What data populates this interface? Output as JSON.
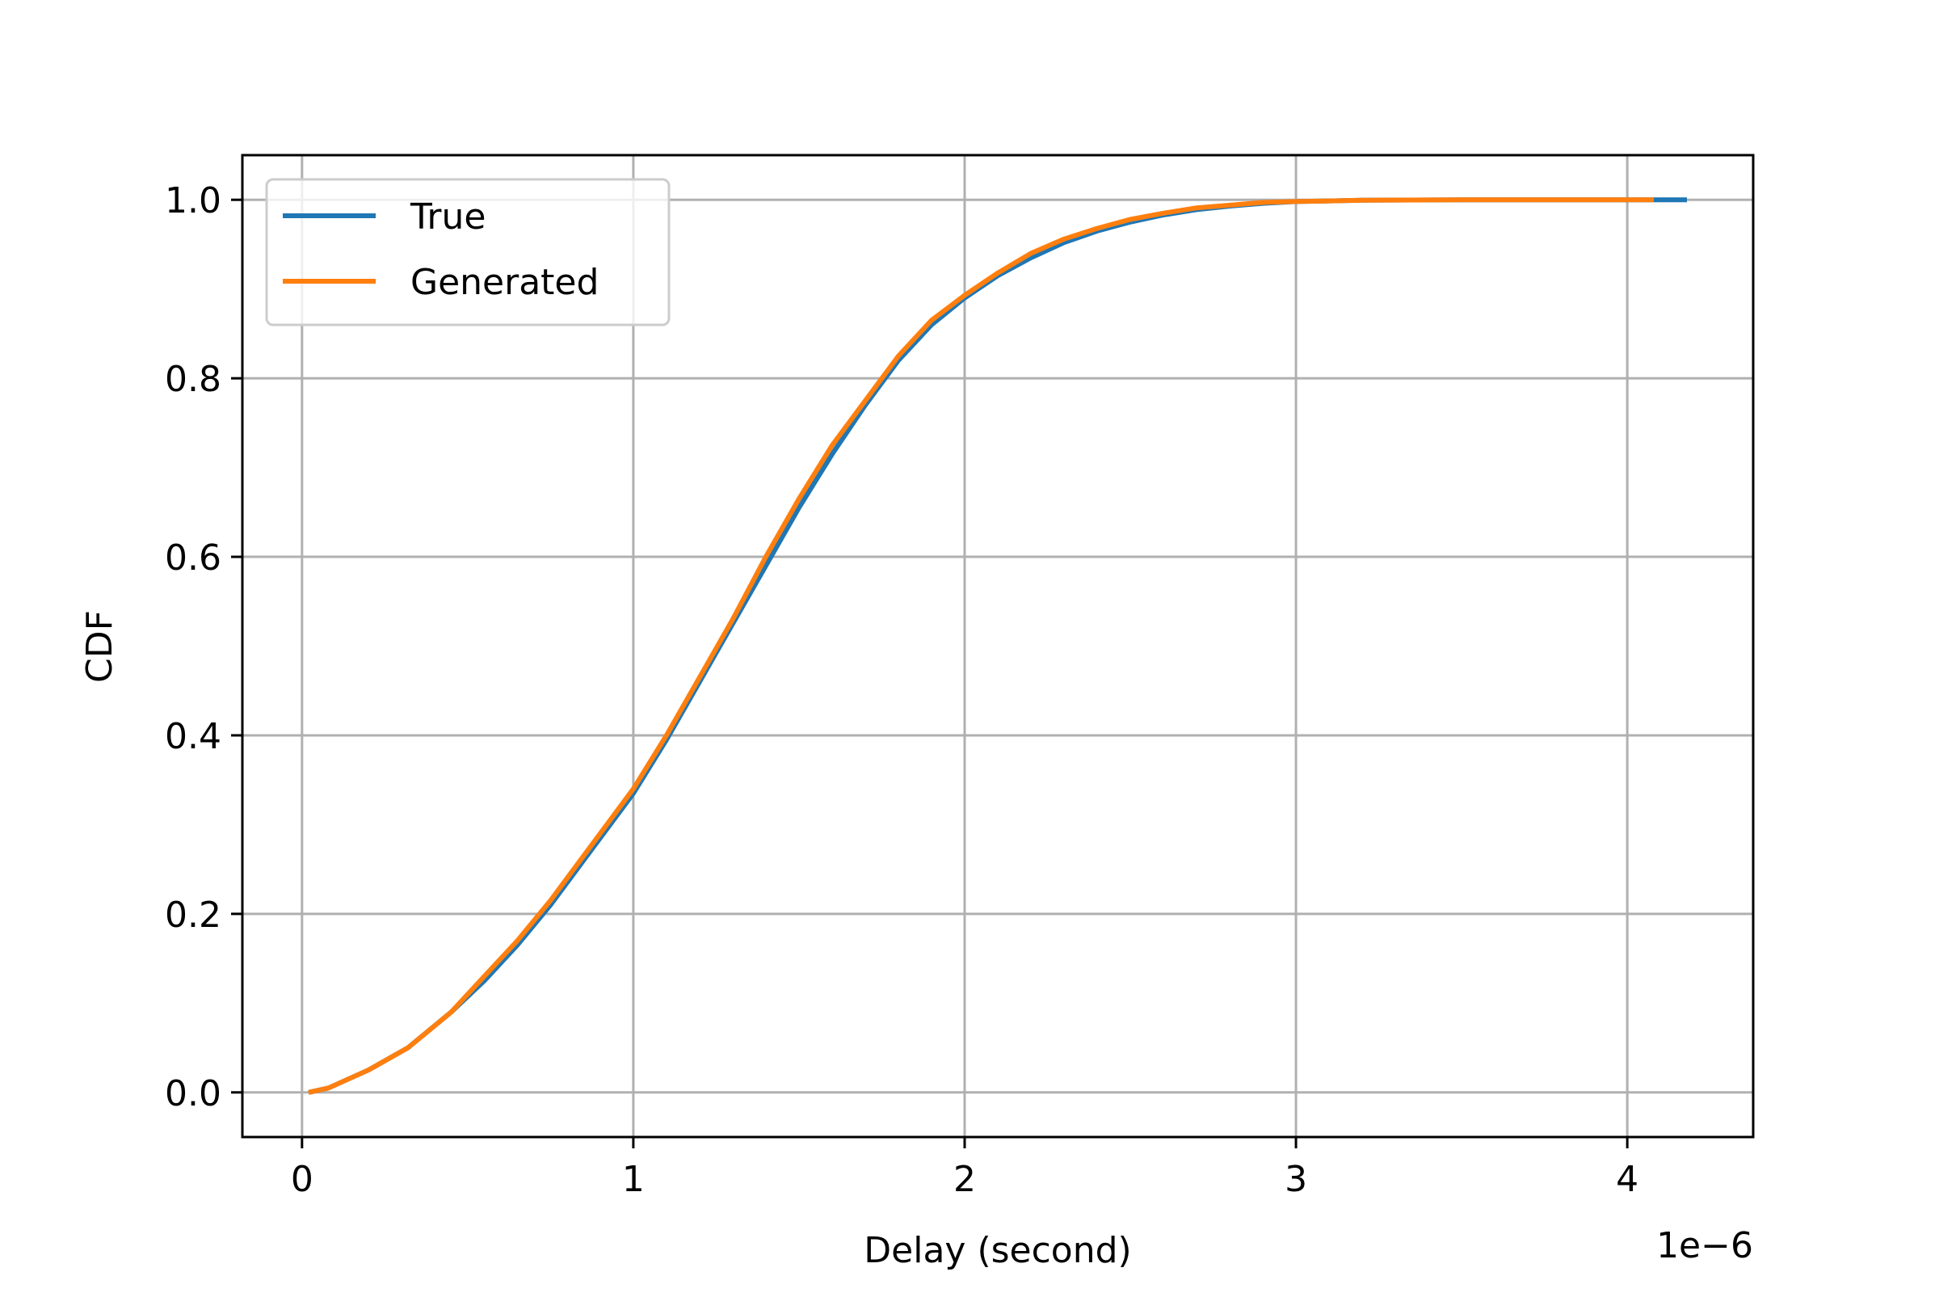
{
  "chart_data": {
    "type": "line",
    "xlabel": "Delay (second)",
    "ylabel": "CDF",
    "x_offset_text": "1e−6",
    "x_scale_factor": 1e-06,
    "xlim": [
      -0.18,
      4.38
    ],
    "ylim": [
      -0.05,
      1.05
    ],
    "x_ticks": [
      0,
      1,
      2,
      3,
      4
    ],
    "x_tick_labels": [
      "0",
      "1",
      "2",
      "3",
      "4"
    ],
    "y_ticks": [
      0.0,
      0.2,
      0.4,
      0.6,
      0.8,
      1.0
    ],
    "y_tick_labels": [
      "0.0",
      "0.2",
      "0.4",
      "0.6",
      "0.8",
      "1.0"
    ],
    "grid": true,
    "legend_position": "top-left",
    "series": [
      {
        "name": "True",
        "color": "#1f77b4",
        "x": [
          0.02,
          0.08,
          0.2,
          0.32,
          0.45,
          0.55,
          0.65,
          0.75,
          0.85,
          0.95,
          1.0,
          1.1,
          1.2,
          1.3,
          1.4,
          1.5,
          1.6,
          1.7,
          1.8,
          1.9,
          2.0,
          2.1,
          2.2,
          2.3,
          2.4,
          2.5,
          2.6,
          2.7,
          2.8,
          2.9,
          3.0,
          3.2,
          3.5,
          3.8,
          4.1,
          4.18
        ],
        "y": [
          0.0,
          0.005,
          0.025,
          0.05,
          0.09,
          0.125,
          0.165,
          0.21,
          0.26,
          0.31,
          0.335,
          0.395,
          0.46,
          0.525,
          0.59,
          0.655,
          0.715,
          0.77,
          0.82,
          0.86,
          0.89,
          0.915,
          0.935,
          0.952,
          0.965,
          0.975,
          0.983,
          0.989,
          0.993,
          0.996,
          0.998,
          0.9995,
          1.0,
          1.0,
          1.0,
          1.0
        ]
      },
      {
        "name": "Generated",
        "color": "#ff7f0e",
        "x": [
          0.02,
          0.08,
          0.2,
          0.32,
          0.45,
          0.55,
          0.65,
          0.75,
          0.85,
          0.95,
          1.0,
          1.1,
          1.2,
          1.3,
          1.4,
          1.5,
          1.6,
          1.7,
          1.8,
          1.9,
          2.0,
          2.1,
          2.2,
          2.3,
          2.4,
          2.5,
          2.6,
          2.7,
          2.8,
          2.9,
          3.0,
          3.2,
          3.5,
          3.8,
          4.08
        ],
        "y": [
          0.0,
          0.005,
          0.025,
          0.05,
          0.09,
          0.13,
          0.17,
          0.215,
          0.265,
          0.315,
          0.34,
          0.4,
          0.465,
          0.53,
          0.6,
          0.665,
          0.725,
          0.775,
          0.825,
          0.865,
          0.893,
          0.918,
          0.94,
          0.956,
          0.968,
          0.978,
          0.985,
          0.991,
          0.994,
          0.997,
          0.998,
          0.9995,
          1.0,
          1.0,
          1.0
        ]
      }
    ]
  }
}
